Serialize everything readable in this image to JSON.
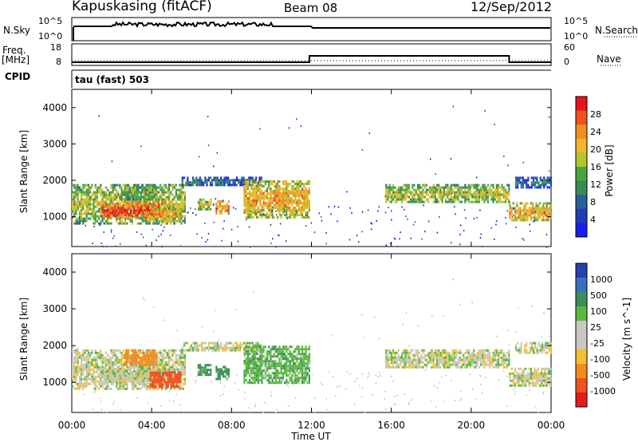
{
  "header": {
    "station": "Kapuskasing (fitACF)",
    "beam": "Beam 08",
    "date": "12/Sep/2012"
  },
  "noise_panel": {
    "left_label": "N.Sky",
    "right_label": "N.Search",
    "left_ticks": [
      "10^5",
      "10^0"
    ],
    "right_ticks": [
      "10^5",
      "10^0"
    ]
  },
  "freq_panel": {
    "left_label_1": "Freq.",
    "left_label_2": "[MHz]",
    "right_label": "Nave",
    "left_ticks": [
      "18",
      "8"
    ],
    "right_ticks": [
      "60",
      "0"
    ],
    "cpid_label": "CPID",
    "cpid_text": "tau (fast) 503"
  },
  "power_colorbar": {
    "label": "Power [dB]",
    "ticks": [
      "28",
      "24",
      "20",
      "16",
      "12",
      "8",
      "4"
    ],
    "colors": [
      "#e8141b",
      "#f0501d",
      "#f28d22",
      "#f5b52a",
      "#b3c62c",
      "#4ea33f",
      "#3a8a57",
      "#2a5f9c",
      "#1f3fb4",
      "#1a1ef0"
    ]
  },
  "velocity_colorbar": {
    "label": "Velocity [m s^-1]",
    "ticks": [
      "1000",
      "500",
      "100",
      "25",
      "-25",
      "-100",
      "-500",
      "-1000"
    ],
    "colors": [
      "#2640b0",
      "#3a6fc0",
      "#3d8c5a",
      "#58b840",
      "#c8c8c0",
      "#c8c8c0",
      "#f5c030",
      "#f08c20",
      "#f05020",
      "#e81a1a"
    ]
  },
  "axes": {
    "ylabel": "Slant Range [km]",
    "xlabel": "Time UT",
    "yticks": [
      "4000",
      "3000",
      "2000",
      "1000"
    ],
    "xticks": [
      "00:00",
      "04:00",
      "08:00",
      "12:00",
      "16:00",
      "20:00",
      "00:00"
    ]
  },
  "chart_data": {
    "type": "heatmap",
    "title": "Kapuskasing (fitACF) Beam 08 12/Sep/2012",
    "xlabel": "Time UT",
    "ylabel": "Slant Range [km]",
    "xlim_hours": [
      0,
      24
    ],
    "ylim_km": [
      180,
      4500
    ],
    "freq_steps": [
      {
        "start_h": 0,
        "end_h": 11.9,
        "freq_mhz": 10
      },
      {
        "start_h": 11.9,
        "end_h": 21.9,
        "freq_mhz": 14
      },
      {
        "start_h": 21.9,
        "end_h": 24,
        "freq_mhz": 10
      }
    ],
    "regions": [
      {
        "t0": 0,
        "t1": 5.7,
        "r0": 800,
        "r1": 1900,
        "power": 14,
        "velocity": 0
      },
      {
        "t0": 1.5,
        "t1": 4.6,
        "r0": 1000,
        "r1": 1400,
        "power": 24,
        "velocity": 0
      },
      {
        "t0": 2.6,
        "t1": 4.2,
        "r0": 1500,
        "r1": 1900,
        "power": 12,
        "velocity": -300
      },
      {
        "t0": 3.9,
        "t1": 5.4,
        "r0": 900,
        "r1": 1300,
        "power": 18,
        "velocity": -500
      },
      {
        "t0": 5.5,
        "t1": 9.5,
        "r0": 1850,
        "r1": 2100,
        "power": 6,
        "velocity": 0
      },
      {
        "t0": 6.3,
        "t1": 7.0,
        "r0": 1200,
        "r1": 1500,
        "power": 14,
        "velocity": 150
      },
      {
        "t0": 7.2,
        "t1": 7.9,
        "r0": 1100,
        "r1": 1450,
        "power": 20,
        "velocity": 150
      },
      {
        "t0": 8.6,
        "t1": 11.9,
        "r0": 1000,
        "r1": 2000,
        "power": 18,
        "velocity": 80
      },
      {
        "t0": 15.7,
        "t1": 21.9,
        "r0": 1400,
        "r1": 1900,
        "power": 14,
        "velocity": 0
      },
      {
        "t0": 21.9,
        "t1": 24,
        "r0": 900,
        "r1": 1400,
        "power": 18,
        "velocity": 0
      },
      {
        "t0": 22.2,
        "t1": 24,
        "r0": 1800,
        "r1": 2100,
        "power": 6,
        "velocity": 0
      }
    ]
  }
}
